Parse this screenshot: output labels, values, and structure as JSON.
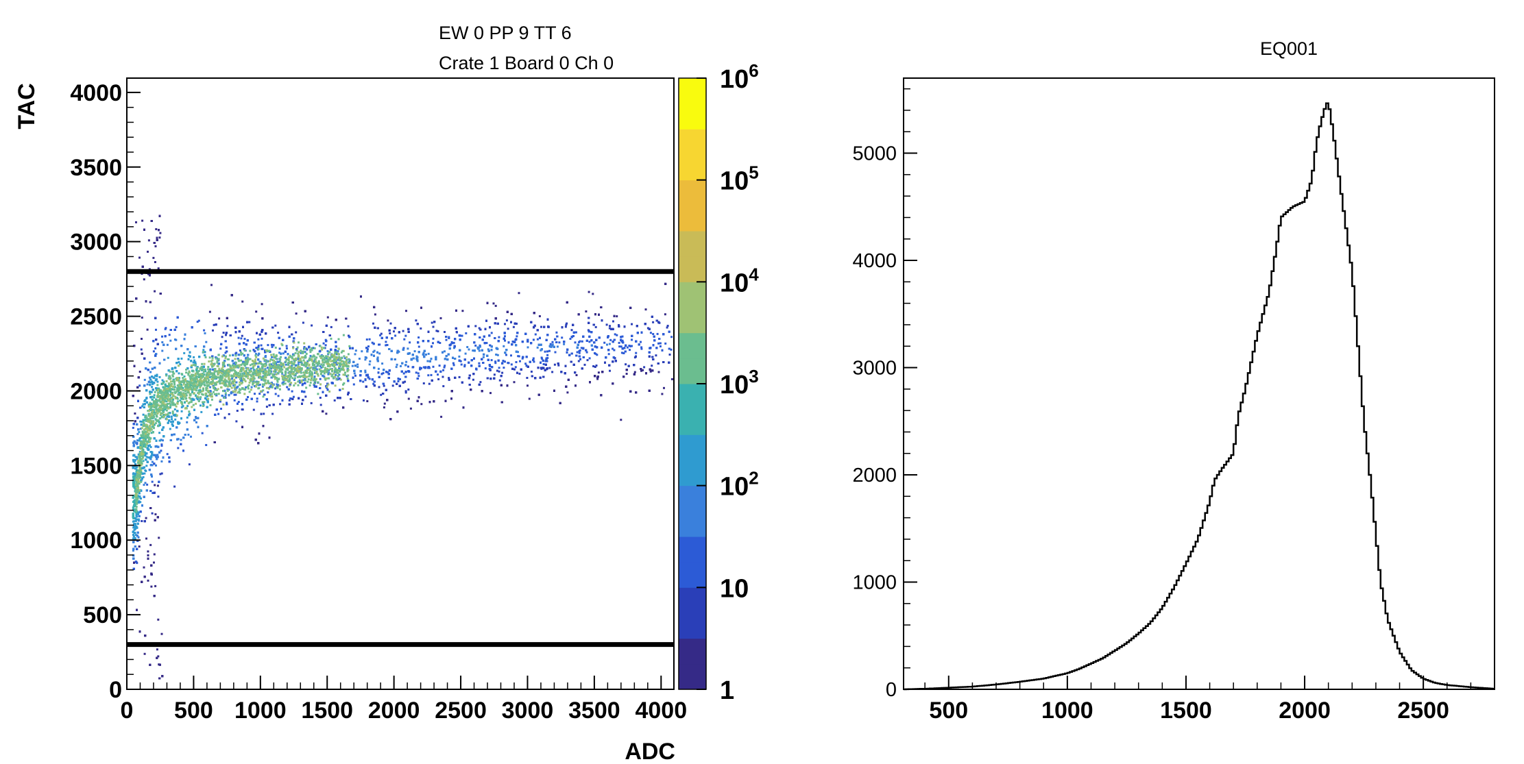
{
  "chart_data": [
    {
      "type": "heatmap",
      "title_lines": [
        "EW 0 PP 9 TT 6",
        "Crate 1 Board 0 Ch 0"
      ],
      "xlabel": "ADC",
      "ylabel": "TAC",
      "xlim": [
        0,
        4096
      ],
      "ylim": [
        0,
        4096
      ],
      "xticks": [
        0,
        500,
        1000,
        1500,
        2000,
        2500,
        3000,
        3500,
        4000
      ],
      "yticks": [
        0,
        500,
        1000,
        1500,
        2000,
        2500,
        3000,
        3500,
        4000
      ],
      "colorbar": {
        "scale": "log",
        "range": [
          1,
          1000000
        ],
        "labels": [
          {
            "value": 1,
            "base": "1",
            "exp": ""
          },
          {
            "value": 10,
            "base": "10",
            "exp": ""
          },
          {
            "value": 100,
            "base": "10",
            "exp": "2"
          },
          {
            "value": 1000,
            "base": "10",
            "exp": "3"
          },
          {
            "value": 10000,
            "base": "10",
            "exp": "4"
          },
          {
            "value": 100000,
            "base": "10",
            "exp": "5"
          },
          {
            "value": 1000000,
            "base": "10",
            "exp": "6"
          }
        ],
        "colors": [
          "#352a87",
          "#2a3fb8",
          "#2c5bd6",
          "#3a80dc",
          "#2f9bd0",
          "#3ab1b0",
          "#6bbd8f",
          "#9fc274",
          "#c9bb57",
          "#ecbc3b",
          "#f7d631",
          "#f9fb0e"
        ]
      },
      "cut_lines_tac": [
        2800,
        300
      ],
      "band": {
        "description_points_adc": [
          60,
          120,
          200,
          300,
          500,
          800,
          1200,
          1700,
          2200,
          2800,
          3400,
          4000
        ],
        "center_tac": [
          1300,
          1700,
          1880,
          1980,
          2060,
          2120,
          2160,
          2200,
          2240,
          2280,
          2310,
          2340
        ]
      }
    },
    {
      "type": "line",
      "title": "EQ001",
      "xlim": [
        310,
        2800
      ],
      "ylim": [
        0,
        5700
      ],
      "xticks": [
        500,
        1000,
        1500,
        2000,
        2500
      ],
      "yticks": [
        0,
        1000,
        2000,
        3000,
        4000,
        5000
      ],
      "x": [
        310,
        400,
        500,
        600,
        700,
        800,
        900,
        1000,
        1050,
        1100,
        1150,
        1200,
        1250,
        1300,
        1350,
        1400,
        1450,
        1500,
        1550,
        1600,
        1620,
        1650,
        1700,
        1720,
        1750,
        1780,
        1800,
        1850,
        1880,
        1900,
        1950,
        2000,
        2030,
        2050,
        2070,
        2090,
        2100,
        2120,
        2150,
        2200,
        2250,
        2280,
        2300,
        2320,
        2350,
        2400,
        2450,
        2500,
        2550,
        2600,
        2700,
        2800
      ],
      "y": [
        0,
        5,
        15,
        25,
        45,
        70,
        100,
        150,
        190,
        240,
        290,
        360,
        430,
        520,
        620,
        760,
        950,
        1170,
        1400,
        1750,
        1950,
        2050,
        2200,
        2550,
        2800,
        3100,
        3300,
        3700,
        4100,
        4400,
        4500,
        4550,
        4750,
        5100,
        5300,
        5450,
        5480,
        5200,
        4700,
        3900,
        2500,
        1900,
        1450,
        1000,
        650,
        350,
        180,
        100,
        60,
        40,
        20,
        5
      ]
    }
  ]
}
